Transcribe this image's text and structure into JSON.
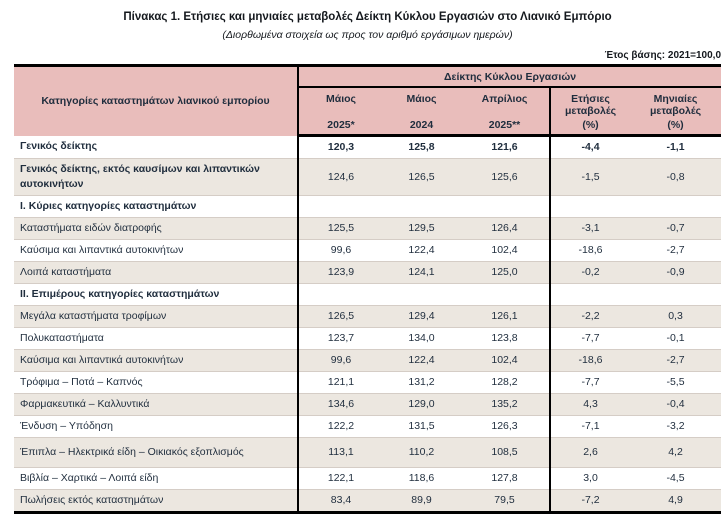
{
  "page": {
    "title": "Πίνακας 1. Ετήσιες και μηνιαίες μεταβολές Δείκτη Κύκλου Εργασιών στο Λιανικό Εμπόριο",
    "subtitle": "(Διορθωμένα στοιχεία ως προς τον αριθμό εργάσιμων ημερών)",
    "base_year_note": "Έτος βάσης: 2021=100,0"
  },
  "colors": {
    "header_bg": "#e9bdbb",
    "row_alt_bg": "#ece7e0",
    "row_line": "#d5cdc6",
    "text": "#1f2d3d",
    "title_text": "#14181d",
    "border": "#000000"
  },
  "table": {
    "col1_header": "Κατηγορίες καταστημάτων λιανικού εμπορίου",
    "group_header": "Δείκτης Κύκλου Εργασιών",
    "columns": [
      {
        "line1": "Μάιος",
        "line2": "2025*"
      },
      {
        "line1": "Μάιος",
        "line2": "2024"
      },
      {
        "line1": "Απρίλιος",
        "line2": "2025**"
      },
      {
        "line1": "Ετήσιες μεταβολές",
        "line2": "(%)"
      },
      {
        "line1": "Μηνιαίες μεταβολές",
        "line2": "(%)"
      }
    ],
    "rows": [
      {
        "label": "Γενικός δείκτης",
        "label_bold": true,
        "values_bold": true,
        "shaded": false,
        "values": [
          "120,3",
          "125,8",
          "121,6",
          "-4,4",
          "-1,1"
        ]
      },
      {
        "label": "Γενικός δείκτης, εκτός καυσίμων και λιπαντικών αυτοκινήτων",
        "label_bold": true,
        "shaded": true,
        "values": [
          "124,6",
          "126,5",
          "125,6",
          "-1,5",
          "-0,8"
        ]
      },
      {
        "label": "Ι. Κύριες κατηγορίες καταστημάτων",
        "label_bold": true,
        "shaded": false,
        "values": [
          "",
          "",
          "",
          "",
          ""
        ]
      },
      {
        "label": "Καταστήματα ειδών διατροφής",
        "shaded": true,
        "values": [
          "125,5",
          "129,5",
          "126,4",
          "-3,1",
          "-0,7"
        ]
      },
      {
        "label": "Καύσιμα και λιπαντικά αυτοκινήτων",
        "shaded": false,
        "values": [
          "99,6",
          "122,4",
          "102,4",
          "-18,6",
          "-2,7"
        ]
      },
      {
        "label": "Λοιπά καταστήματα",
        "shaded": true,
        "values": [
          "123,9",
          "124,1",
          "125,0",
          "-0,2",
          "-0,9"
        ]
      },
      {
        "label": "ΙΙ. Επιμέρους κατηγορίες καταστημάτων",
        "label_bold": true,
        "shaded": false,
        "values": [
          "",
          "",
          "",
          "",
          ""
        ]
      },
      {
        "label": "Μεγάλα καταστήματα τροφίμων",
        "shaded": true,
        "values": [
          "126,5",
          "129,4",
          "126,1",
          "-2,2",
          "0,3"
        ]
      },
      {
        "label": "Πολυκαταστήματα",
        "shaded": false,
        "values": [
          "123,7",
          "134,0",
          "123,8",
          "-7,7",
          "-0,1"
        ]
      },
      {
        "label": "Καύσιμα και λιπαντικά αυτοκινήτων",
        "shaded": true,
        "values": [
          "99,6",
          "122,4",
          "102,4",
          "-18,6",
          "-2,7"
        ]
      },
      {
        "label": "Τρόφιμα – Ποτά – Καπνός",
        "shaded": false,
        "values": [
          "121,1",
          "131,2",
          "128,2",
          "-7,7",
          "-5,5"
        ]
      },
      {
        "label": "Φαρμακευτικά – Καλλυντικά",
        "shaded": true,
        "values": [
          "134,6",
          "129,0",
          "135,2",
          "4,3",
          "-0,4"
        ]
      },
      {
        "label": "Ένδυση – Υπόδηση",
        "shaded": false,
        "values": [
          "122,2",
          "131,5",
          "126,3",
          "-7,1",
          "-3,2"
        ]
      },
      {
        "label": "Έπιπλα – Ηλεκτρικά είδη – Οικιακός εξοπλισμός",
        "shaded": true,
        "tall": true,
        "values": [
          "113,1",
          "110,2",
          "108,5",
          "2,6",
          "4,2"
        ]
      },
      {
        "label": "Βιβλία – Χαρτικά – Λοιπά είδη",
        "shaded": false,
        "values": [
          "122,1",
          "118,6",
          "127,8",
          "3,0",
          "-4,5"
        ]
      },
      {
        "label": "Πωλήσεις εκτός καταστημάτων",
        "shaded": true,
        "values": [
          "83,4",
          "89,9",
          "79,5",
          "-7,2",
          "4,9"
        ]
      }
    ]
  }
}
